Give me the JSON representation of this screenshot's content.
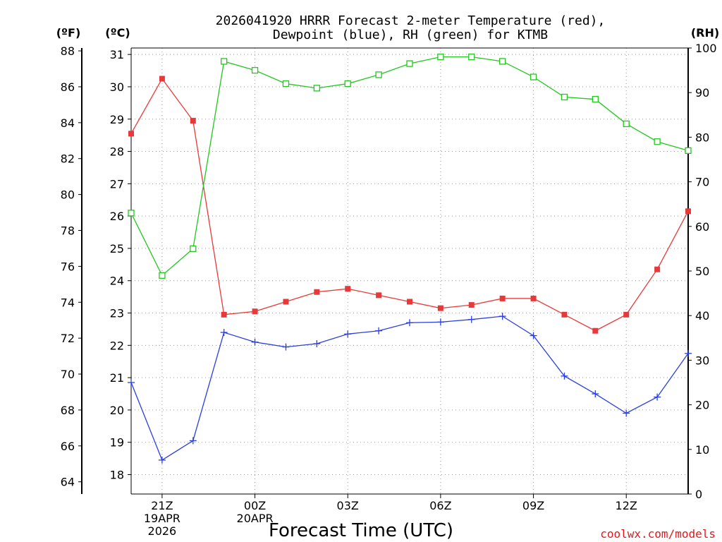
{
  "chart_data": {
    "type": "line",
    "title_line1": "2026041920 HRRR Forecast 2-meter Temperature (red),",
    "title_line2": "Dewpoint (blue), RH (green) for KTMB",
    "xlabel": "Forecast Time (UTC)",
    "credit": "coolwx.com/models",
    "units": {
      "fahrenheit": "(ºF)",
      "celsius": "(ºC)",
      "rh": "(RH)"
    },
    "hours": [
      0,
      1,
      2,
      3,
      4,
      5,
      6,
      7,
      8,
      9,
      10,
      11,
      12,
      13,
      14,
      15,
      16,
      17,
      18
    ],
    "x_ticks": [
      {
        "hour": 1,
        "lines": [
          "21Z",
          "19APR",
          "2026"
        ]
      },
      {
        "hour": 4,
        "lines": [
          "00Z",
          "20APR"
        ]
      },
      {
        "hour": 7,
        "lines": [
          "03Z"
        ]
      },
      {
        "hour": 10,
        "lines": [
          "06Z"
        ]
      },
      {
        "hour": 13,
        "lines": [
          "09Z"
        ]
      },
      {
        "hour": 16,
        "lines": [
          "12Z"
        ]
      }
    ],
    "ylim_celsius": [
      17.4,
      31.2
    ],
    "ylim_fahrenheit": [
      63.32,
      88.16
    ],
    "ylim_rh": [
      0,
      100
    ],
    "celsius_ticks": [
      "18",
      "19",
      "20",
      "21",
      "22",
      "23",
      "24",
      "25",
      "26",
      "27",
      "28",
      "29",
      "30",
      "31"
    ],
    "fahrenheit_ticks": [
      "64",
      "66",
      "68",
      "70",
      "72",
      "74",
      "76",
      "78",
      "80",
      "82",
      "84",
      "86",
      "88"
    ],
    "rh_ticks": [
      "0",
      "10",
      "20",
      "30",
      "40",
      "50",
      "60",
      "70",
      "80",
      "90",
      "100"
    ],
    "series": [
      {
        "name": "Temperature",
        "unit": "C",
        "color": "#e8393a",
        "marker": "filled-square",
        "values": [
          28.55,
          30.25,
          28.95,
          22.95,
          23.05,
          23.35,
          23.65,
          23.75,
          23.55,
          23.35,
          23.15,
          23.25,
          23.45,
          23.45,
          22.95,
          22.45,
          22.95,
          24.35,
          26.15
        ]
      },
      {
        "name": "Dewpoint",
        "unit": "C",
        "color": "#2a3fe0",
        "marker": "plus",
        "values": [
          20.85,
          18.45,
          19.05,
          22.4,
          22.1,
          21.95,
          22.05,
          22.35,
          22.45,
          22.7,
          22.72,
          22.8,
          22.9,
          22.3,
          21.05,
          20.5,
          19.9,
          20.4,
          21.75
        ]
      },
      {
        "name": "RH",
        "unit": "%",
        "color": "#22c81e",
        "marker": "open-square",
        "values": [
          63.0,
          49.0,
          55.0,
          97.0,
          95.0,
          92.0,
          91.0,
          92.0,
          94.0,
          96.5,
          98.0,
          98.0,
          97.0,
          93.5,
          89.0,
          88.5,
          83.0,
          79.0,
          77.0
        ]
      }
    ]
  }
}
